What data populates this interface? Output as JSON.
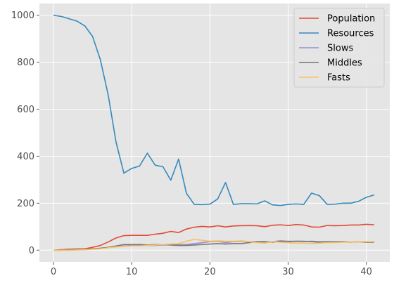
{
  "chart_data": {
    "type": "line",
    "title": "",
    "xlabel": "",
    "ylabel": "",
    "xlim": [
      -1.8,
      43.0
    ],
    "ylim": [
      -50,
      1050
    ],
    "grid": true,
    "legend_position": "top-right",
    "x_ticks": [
      0,
      10,
      20,
      30,
      40
    ],
    "y_ticks": [
      0,
      200,
      400,
      600,
      800,
      1000
    ],
    "x": [
      0,
      1,
      2,
      3,
      4,
      5,
      6,
      7,
      8,
      9,
      10,
      11,
      12,
      13,
      14,
      15,
      16,
      17,
      18,
      19,
      20,
      21,
      22,
      23,
      24,
      25,
      26,
      27,
      28,
      29,
      30,
      31,
      32,
      33,
      34,
      35,
      36,
      37,
      38,
      39,
      40,
      41
    ],
    "series": [
      {
        "name": "Population",
        "color": "#E24A33",
        "values": [
          0,
          2,
          4,
          5,
          6,
          12,
          20,
          35,
          52,
          62,
          63,
          63,
          63,
          68,
          72,
          80,
          75,
          90,
          98,
          101,
          99,
          104,
          99,
          103,
          104,
          105,
          104,
          100,
          106,
          108,
          105,
          109,
          107,
          99,
          98,
          105,
          104,
          105,
          107,
          107,
          110,
          108
        ]
      },
      {
        "name": "Resources",
        "color": "#348ABD",
        "values": [
          1000,
          995,
          985,
          975,
          955,
          910,
          810,
          660,
          460,
          328,
          348,
          358,
          413,
          362,
          355,
          298,
          388,
          242,
          195,
          194,
          196,
          218,
          288,
          195,
          198,
          198,
          197,
          210,
          193,
          190,
          195,
          197,
          195,
          243,
          232,
          195,
          196,
          200,
          200,
          208,
          225,
          235
        ]
      },
      {
        "name": "Slows",
        "color": "#988ED5",
        "values": [
          0,
          0,
          2,
          2,
          3,
          5,
          8,
          12,
          16,
          18,
          20,
          20,
          20,
          20,
          22,
          24,
          24,
          24,
          28,
          32,
          36,
          38,
          32,
          36,
          38,
          36,
          36,
          34,
          36,
          40,
          38,
          38,
          37,
          38,
          36,
          36,
          36,
          36,
          34,
          36,
          36,
          36
        ]
      },
      {
        "name": "Middles",
        "color": "#777777",
        "values": [
          0,
          0,
          2,
          3,
          4,
          6,
          8,
          12,
          18,
          24,
          24,
          24,
          22,
          24,
          24,
          22,
          20,
          20,
          22,
          24,
          26,
          28,
          26,
          28,
          28,
          32,
          36,
          36,
          34,
          38,
          36,
          38,
          38,
          36,
          34,
          36,
          35,
          36,
          34,
          36,
          34,
          34
        ]
      },
      {
        "name": "Fasts",
        "color": "#FBC15E",
        "values": [
          0,
          0,
          0,
          1,
          2,
          4,
          6,
          10,
          14,
          16,
          18,
          18,
          20,
          22,
          24,
          26,
          28,
          38,
          46,
          42,
          38,
          40,
          38,
          38,
          40,
          36,
          32,
          30,
          36,
          34,
          32,
          30,
          30,
          28,
          30,
          32,
          32,
          34,
          34,
          36,
          36,
          36
        ]
      }
    ]
  }
}
